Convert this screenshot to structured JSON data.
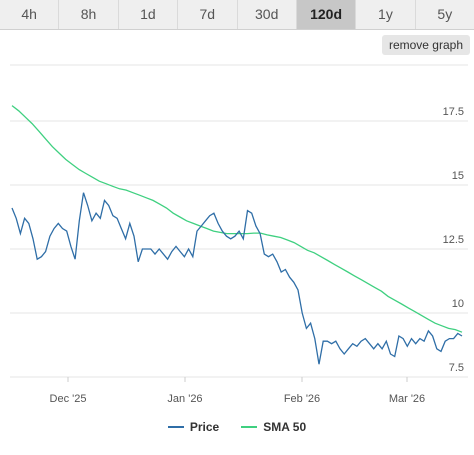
{
  "tabs": [
    {
      "label": "4h",
      "active": false
    },
    {
      "label": "8h",
      "active": false
    },
    {
      "label": "1d",
      "active": false
    },
    {
      "label": "7d",
      "active": false
    },
    {
      "label": "30d",
      "active": false
    },
    {
      "label": "120d",
      "active": true
    },
    {
      "label": "1y",
      "active": false
    },
    {
      "label": "5y",
      "active": false
    }
  ],
  "remove_graph_label": "remove graph",
  "colors": {
    "price": "#2f6ea7",
    "sma": "#3fd080",
    "grid": "#e6e6e6",
    "axis_text": "#555555"
  },
  "chart_data": {
    "type": "line",
    "x_ticks": [
      "Dec '25",
      "Jan '26",
      "Feb '26",
      "Mar '26"
    ],
    "y_ticks": [
      "7.5",
      "10",
      "12.5",
      "15",
      "17.5"
    ],
    "ylim": [
      7.5,
      20
    ],
    "y_tick_values": [
      7.5,
      10,
      12.5,
      15,
      17.5
    ],
    "grid": true,
    "legend_position": "bottom",
    "series": [
      {
        "name": "Price",
        "color": "#2f6ea7",
        "values": [
          14.1,
          13.7,
          13.1,
          13.7,
          13.5,
          12.9,
          12.1,
          12.2,
          12.4,
          13.0,
          13.3,
          13.5,
          13.3,
          13.2,
          12.6,
          12.1,
          13.6,
          14.7,
          14.2,
          13.6,
          13.9,
          13.7,
          14.4,
          14.2,
          13.8,
          13.7,
          13.3,
          12.9,
          13.5,
          13.0,
          12.0,
          12.5,
          12.5,
          12.5,
          12.3,
          12.5,
          12.3,
          12.1,
          12.4,
          12.6,
          12.4,
          12.2,
          12.5,
          12.2,
          13.2,
          13.4,
          13.6,
          13.8,
          13.9,
          13.5,
          13.2,
          13.0,
          12.9,
          13.0,
          13.2,
          12.9,
          14.0,
          13.9,
          13.4,
          13.1,
          12.3,
          12.2,
          12.3,
          12.0,
          11.6,
          11.7,
          11.4,
          11.2,
          10.9,
          10.0,
          9.4,
          9.6,
          9.0,
          8.0,
          8.9,
          8.9,
          8.8,
          8.9,
          8.6,
          8.4,
          8.6,
          8.8,
          8.7,
          8.9,
          9.0,
          8.8,
          8.6,
          8.8,
          8.6,
          8.9,
          8.4,
          8.3,
          9.1,
          9.0,
          8.7,
          9.0,
          8.8,
          9.0,
          8.9,
          9.3,
          9.1,
          8.6,
          8.5,
          8.9,
          9.0,
          9.0,
          9.2,
          9.1
        ]
      },
      {
        "name": "SMA 50",
        "color": "#3fd080",
        "values": [
          18.1,
          17.9,
          17.65,
          17.4,
          17.1,
          16.8,
          16.5,
          16.25,
          16.0,
          15.8,
          15.6,
          15.45,
          15.3,
          15.15,
          15.05,
          14.95,
          14.85,
          14.8,
          14.7,
          14.6,
          14.5,
          14.4,
          14.25,
          14.1,
          13.9,
          13.75,
          13.6,
          13.5,
          13.4,
          13.3,
          13.2,
          13.15,
          13.1,
          13.1,
          13.1,
          13.1,
          13.12,
          13.12,
          13.05,
          13.0,
          12.95,
          12.85,
          12.75,
          12.6,
          12.45,
          12.35,
          12.2,
          12.05,
          11.9,
          11.75,
          11.6,
          11.45,
          11.3,
          11.15,
          11.0,
          10.85,
          10.65,
          10.5,
          10.35,
          10.2,
          10.05,
          9.9,
          9.75,
          9.6,
          9.5,
          9.4,
          9.35,
          9.25
        ]
      }
    ]
  }
}
